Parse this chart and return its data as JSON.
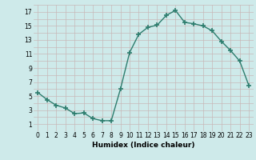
{
  "x": [
    0,
    1,
    2,
    3,
    4,
    5,
    6,
    7,
    8,
    9,
    10,
    11,
    12,
    13,
    14,
    15,
    16,
    17,
    18,
    19,
    20,
    21,
    22,
    23
  ],
  "y": [
    5.5,
    4.5,
    3.7,
    3.3,
    2.5,
    2.6,
    1.8,
    1.5,
    1.5,
    6.0,
    11.2,
    13.8,
    14.8,
    15.1,
    16.5,
    17.2,
    15.5,
    15.3,
    15.0,
    14.3,
    12.8,
    11.5,
    10.0,
    6.5
  ],
  "line_color": "#2d7d6e",
  "marker": "+",
  "marker_size": 4,
  "marker_lw": 1.2,
  "bg_color": "#ceeaea",
  "grid_major_color": "#c8b8b8",
  "grid_minor_color": "#c8b8b8",
  "xlabel": "Humidex (Indice chaleur)",
  "xlim": [
    -0.5,
    23.5
  ],
  "ylim": [
    0,
    18
  ],
  "yticks": [
    1,
    3,
    5,
    7,
    9,
    11,
    13,
    15,
    17
  ],
  "xticks": [
    0,
    1,
    2,
    3,
    4,
    5,
    6,
    7,
    8,
    9,
    10,
    11,
    12,
    13,
    14,
    15,
    16,
    17,
    18,
    19,
    20,
    21,
    22,
    23
  ],
  "tick_fontsize": 5.5,
  "xlabel_fontsize": 6.5,
  "line_width": 1.0
}
